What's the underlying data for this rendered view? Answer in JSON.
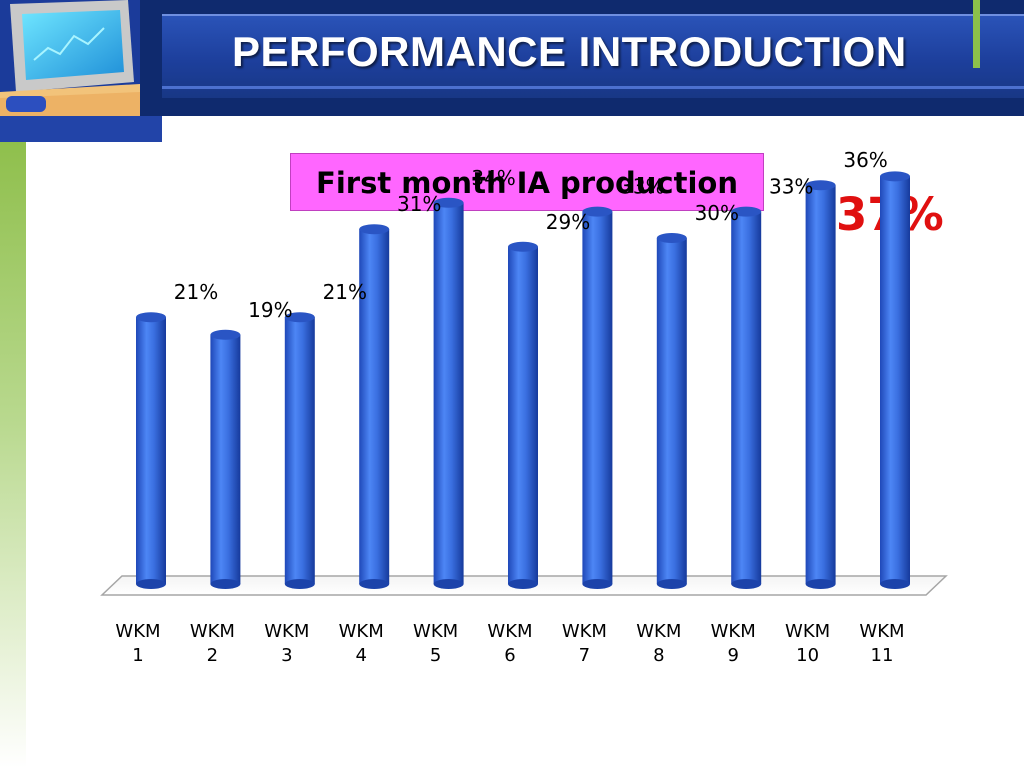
{
  "header": {
    "title": "PERFORMANCE INTRODUCTION"
  },
  "colors": {
    "header_dark": "#0f2a6e",
    "header_mid": "#1d3f9c",
    "accent_green": "#8cc14a",
    "bar_fill": "#3a6fe0",
    "title_box": "#ff66ff",
    "highlight": "#e01010"
  },
  "chart_data": {
    "type": "bar",
    "title": "First month IA production",
    "categories": [
      "WKM 1",
      "WKM 2",
      "WKM 3",
      "WKM 4",
      "WKM 5",
      "WKM 6",
      "WKM 7",
      "WKM 8",
      "WKM 9",
      "WKM 10",
      "WKM 11"
    ],
    "tick_lines": [
      [
        "WKM",
        "1"
      ],
      [
        "WKM",
        "2"
      ],
      [
        "WKM",
        "3"
      ],
      [
        "WKM",
        "4"
      ],
      [
        "WKM",
        "5"
      ],
      [
        "WKM",
        "6"
      ],
      [
        "WKM",
        "7"
      ],
      [
        "WKM",
        "8"
      ],
      [
        "WKM",
        "9"
      ],
      [
        "WKM",
        "10"
      ],
      [
        "WKM",
        "11"
      ]
    ],
    "values": [
      21,
      19,
      21,
      31,
      34,
      29,
      33,
      30,
      33,
      36,
      37
    ],
    "data_labels": [
      "21%",
      "19%",
      "21%",
      "31%",
      "34%",
      "29%",
      "33%",
      "30%",
      "33%",
      "36%",
      ""
    ],
    "highlight_label": "37%",
    "xlabel": "",
    "ylabel": "",
    "ylim": [
      0,
      37
    ],
    "grid": false,
    "legend": "none"
  }
}
